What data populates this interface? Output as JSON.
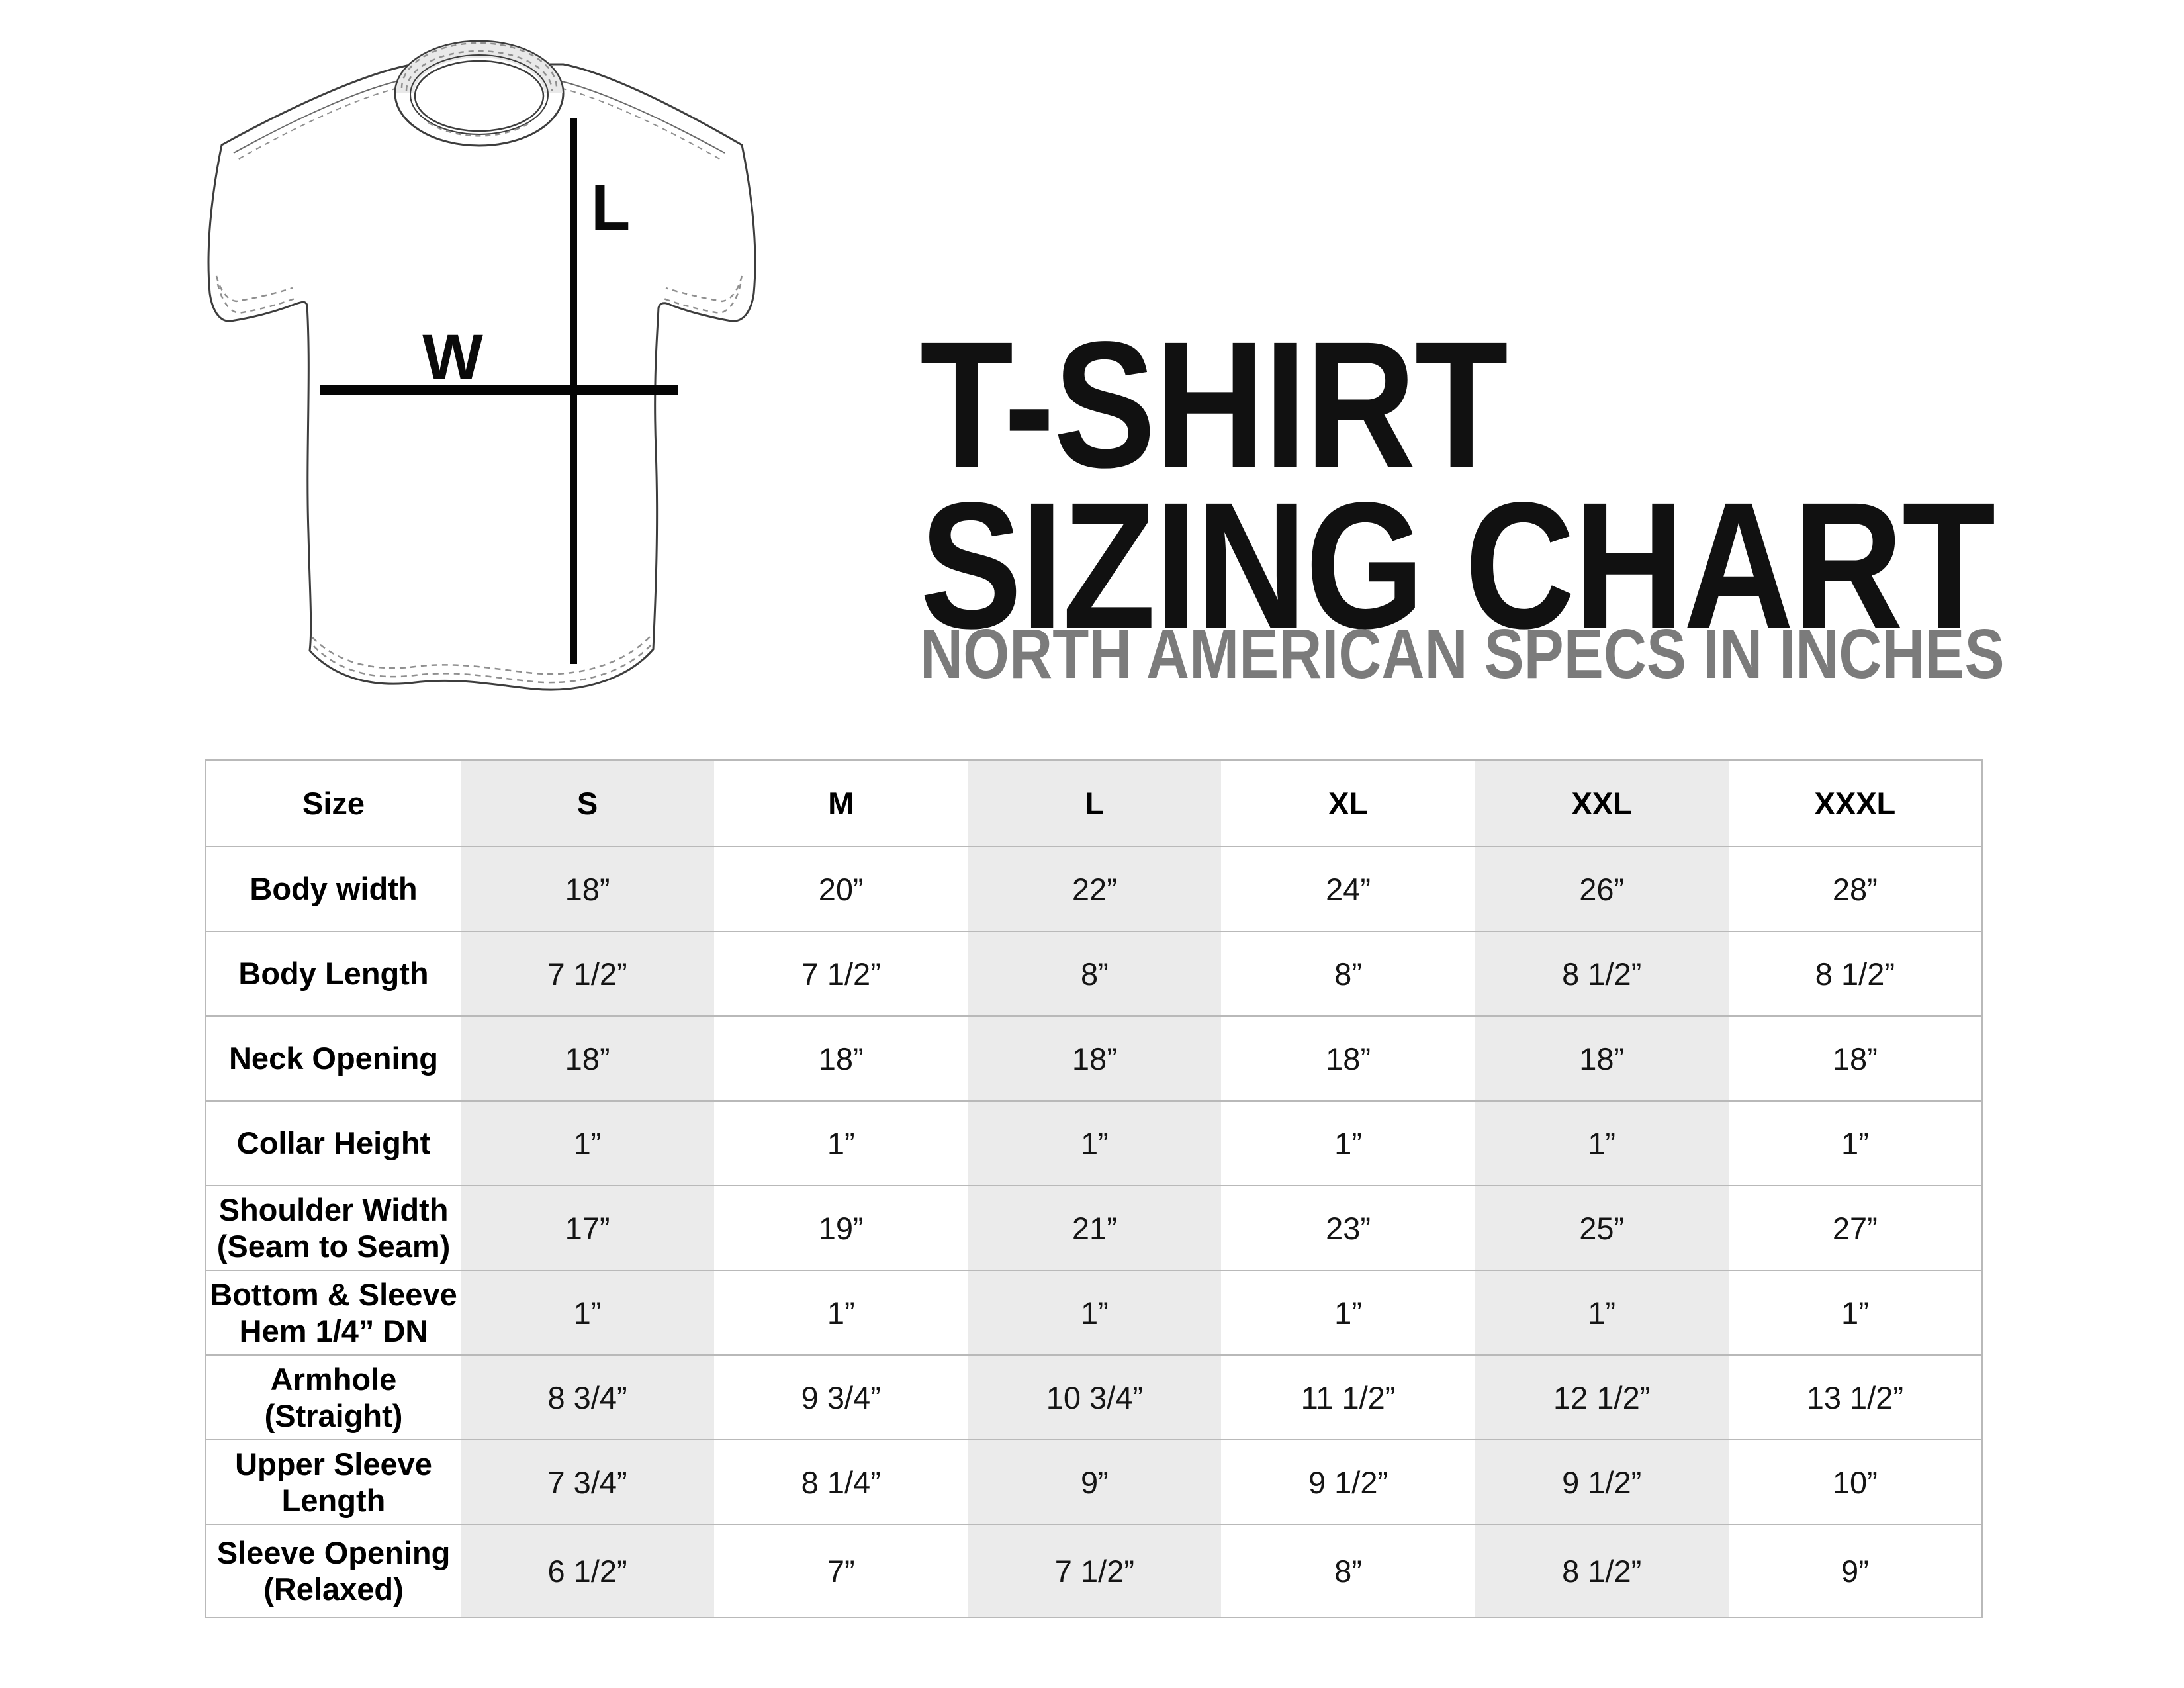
{
  "header": {
    "title_line1": "T-SHIRT",
    "title_line2": "SIZING CHART",
    "subtitle": "NORTH AMERICAN SPECS IN INCHES"
  },
  "diagram": {
    "length_label": "L",
    "width_label": "W"
  },
  "colors": {
    "title": "#111111",
    "subtitle": "#7b7b7b",
    "column_shade": "#ebebeb",
    "table_border": "#b9b9b9",
    "measure_line": "#000000"
  },
  "chart_data": {
    "type": "table",
    "title": "T-SHIRT SIZING CHART",
    "subtitle": "NORTH AMERICAN SPECS IN INCHES",
    "columns": [
      "Size",
      "S",
      "M",
      "L",
      "XL",
      "XXL",
      "XXXL"
    ],
    "shaded_column_indices": [
      1,
      3,
      5
    ],
    "rows": [
      {
        "label_lines": [
          "Body width"
        ],
        "values": [
          "18”",
          "20”",
          "22”",
          "24”",
          "26”",
          "28”"
        ]
      },
      {
        "label_lines": [
          "Body Length"
        ],
        "values": [
          "7 1/2”",
          "7 1/2”",
          "8”",
          "8”",
          "8 1/2”",
          "8 1/2”"
        ]
      },
      {
        "label_lines": [
          "Neck Opening"
        ],
        "values": [
          "18”",
          "18”",
          "18”",
          "18”",
          "18”",
          "18”"
        ]
      },
      {
        "label_lines": [
          "Collar Height"
        ],
        "values": [
          "1”",
          "1”",
          "1”",
          "1”",
          "1”",
          "1”"
        ]
      },
      {
        "label_lines": [
          "Shoulder Width",
          "(Seam to Seam)"
        ],
        "values": [
          "17”",
          "19”",
          "21”",
          "23”",
          "25”",
          "27”"
        ]
      },
      {
        "label_lines": [
          "Bottom & Sleeve",
          "Hem 1/4” DN"
        ],
        "values": [
          "1”",
          "1”",
          "1”",
          "1”",
          "1”",
          "1”"
        ]
      },
      {
        "label_lines": [
          "Armhole",
          "(Straight)"
        ],
        "values": [
          "8 3/4”",
          "9 3/4”",
          "10 3/4”",
          "11 1/2”",
          "12 1/2”",
          "13 1/2”"
        ]
      },
      {
        "label_lines": [
          "Upper Sleeve",
          "Length"
        ],
        "values": [
          "7 3/4”",
          "8 1/4”",
          "9”",
          "9 1/2”",
          "9 1/2”",
          "10”"
        ]
      },
      {
        "label_lines": [
          "Sleeve Opening",
          "(Relaxed)"
        ],
        "values": [
          "6 1/2”",
          "7”",
          "7 1/2”",
          "8”",
          "8 1/2”",
          "9”"
        ]
      }
    ]
  }
}
